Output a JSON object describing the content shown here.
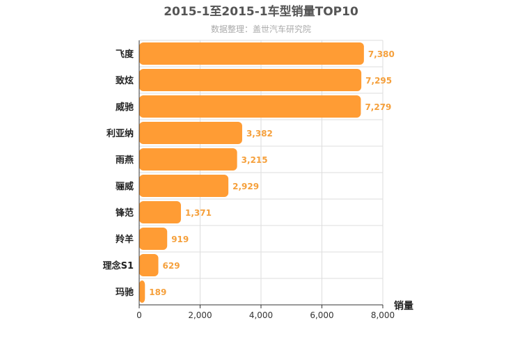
{
  "chart_data": {
    "type": "bar",
    "orientation": "horizontal",
    "title": "2015-1至2015-1车型销量TOP10",
    "subtitle": "数据整理：盖世汽车研究院",
    "xlabel": "销量",
    "ylabel": "",
    "xlim": [
      0,
      8000
    ],
    "xticks": [
      "0",
      "2,000",
      "4,000",
      "6,000",
      "8,000"
    ],
    "grid": true,
    "categories": [
      "飞度",
      "致炫",
      "威驰",
      "利亚纳",
      "雨燕",
      "骊威",
      "锋范",
      "羚羊",
      "理念S1",
      "玛驰"
    ],
    "values": [
      7380,
      7295,
      7279,
      3382,
      3215,
      2929,
      1371,
      919,
      629,
      189
    ],
    "value_labels": [
      "7,380",
      "7,295",
      "7,279",
      "3,382",
      "3,215",
      "2,929",
      "1,371",
      "919",
      "629",
      "189"
    ],
    "bar_color": "#ff9c34",
    "label_color": "#f5a03c"
  }
}
